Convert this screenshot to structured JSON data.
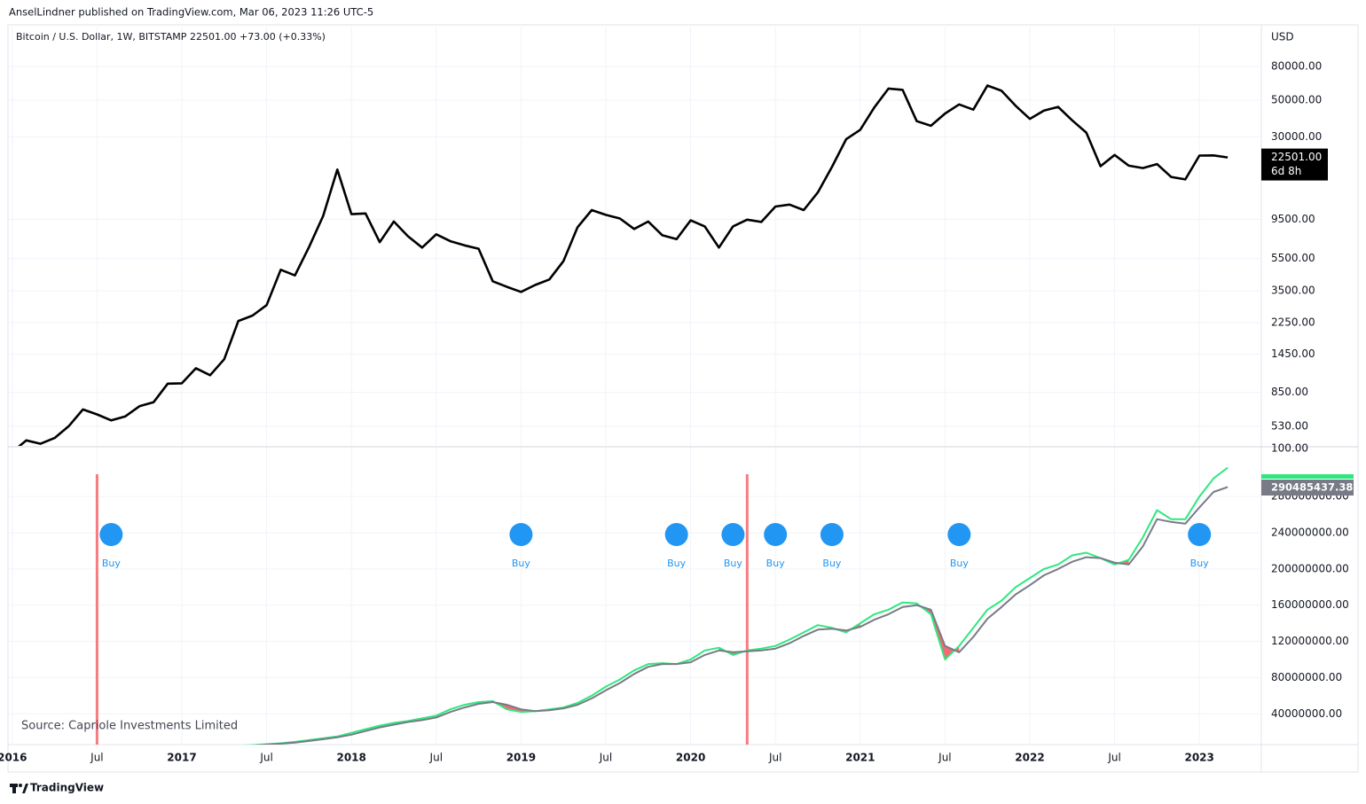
{
  "header": {
    "publisher": "AnselLindner published on TradingView.com, Mar 06, 2023 11:26 UTC-5",
    "symbol": "Bitcoin / U.S. Dollar, 1W, BITSTAMP",
    "last": "22501.00",
    "change": "+73.00 (+0.33%)",
    "currency": "USD"
  },
  "chart_data": [
    {
      "type": "line",
      "log_scale": true,
      "grid": true,
      "x": [
        "2016-01",
        "2016-02",
        "2016-03",
        "2016-04",
        "2016-05",
        "2016-06",
        "2016-07",
        "2016-08",
        "2016-09",
        "2016-10",
        "2016-11",
        "2016-12",
        "2017-01",
        "2017-02",
        "2017-03",
        "2017-04",
        "2017-05",
        "2017-06",
        "2017-07",
        "2017-08",
        "2017-09",
        "2017-10",
        "2017-11",
        "2017-12",
        "2018-01",
        "2018-02",
        "2018-03",
        "2018-04",
        "2018-05",
        "2018-06",
        "2018-07",
        "2018-08",
        "2018-09",
        "2018-10",
        "2018-11",
        "2018-12",
        "2019-01",
        "2019-02",
        "2019-03",
        "2019-04",
        "2019-05",
        "2019-06",
        "2019-07",
        "2019-08",
        "2019-09",
        "2019-10",
        "2019-11",
        "2019-12",
        "2020-01",
        "2020-02",
        "2020-03",
        "2020-04",
        "2020-05",
        "2020-06",
        "2020-07",
        "2020-08",
        "2020-09",
        "2020-10",
        "2020-11",
        "2020-12",
        "2021-01",
        "2021-02",
        "2021-03",
        "2021-04",
        "2021-05",
        "2021-06",
        "2021-07",
        "2021-08",
        "2021-09",
        "2021-10",
        "2021-11",
        "2021-12",
        "2022-01",
        "2022-02",
        "2022-03",
        "2022-04",
        "2022-05",
        "2022-06",
        "2022-07",
        "2022-08",
        "2022-09",
        "2022-10",
        "2022-11",
        "2022-12",
        "2023-01",
        "2023-02",
        "2023-03"
      ],
      "series": [
        {
          "name": "Bitcoin / U.S. Dollar",
          "color": "#000000",
          "values": [
            370,
            435,
            415,
            450,
            530,
            670,
            625,
            575,
            608,
            700,
            740,
            960,
            965,
            1190,
            1080,
            1350,
            2300,
            2480,
            2870,
            4700,
            4340,
            6450,
            9950,
            19000,
            10200,
            10300,
            6900,
            9200,
            7500,
            6400,
            7700,
            7000,
            6600,
            6300,
            4000,
            3700,
            3450,
            3800,
            4100,
            5300,
            8500,
            10800,
            10100,
            9600,
            8300,
            9200,
            7600,
            7200,
            9350,
            8600,
            6400,
            8600,
            9450,
            9150,
            11350,
            11650,
            10800,
            13800,
            19700,
            29000,
            33100,
            45200,
            58800,
            57700,
            37300,
            35000,
            41500,
            47100,
            43800,
            61300,
            57000,
            46200,
            38500,
            43200,
            45500,
            37700,
            31800,
            19900,
            23300,
            20050,
            19400,
            20500,
            17150,
            16550,
            23100,
            23150,
            22501
          ]
        }
      ],
      "ylim": [
        403,
        139500
      ],
      "yticks": [
        {
          "value": 530,
          "label": "530.00"
        },
        {
          "value": 850,
          "label": "850.00"
        },
        {
          "value": 1450,
          "label": "1450.00"
        },
        {
          "value": 2250,
          "label": "2250.00"
        },
        {
          "value": 3500,
          "label": "3500.00"
        },
        {
          "value": 5500,
          "label": "5500.00"
        },
        {
          "value": 9500,
          "label": "9500.00"
        },
        {
          "value": 30000,
          "label": "30000.00"
        },
        {
          "value": 50000,
          "label": "50000.00"
        },
        {
          "value": 80000,
          "label": "80000.00"
        }
      ],
      "price_label": "22501.00",
      "countdown": "6d 8h"
    },
    {
      "type": "line",
      "grid": true,
      "series": [
        {
          "name": "Hash Rate fast",
          "color": "#2ee87e",
          "values": [
            1000000,
            1100000,
            1200000,
            1300000,
            1400000,
            1500000,
            1500000,
            1600000,
            1800000,
            2000000,
            2200000,
            2400000,
            2800000,
            3200000,
            3600000,
            4000000,
            4800000,
            5500000,
            6500000,
            7500000,
            9000000,
            11000000,
            13000000,
            15000000,
            19000000,
            23000000,
            27000000,
            30000000,
            32000000,
            35000000,
            38000000,
            45000000,
            50000000,
            53000000,
            54000000,
            45000000,
            42000000,
            43000000,
            45000000,
            47000000,
            52000000,
            60000000,
            70000000,
            78000000,
            88000000,
            95000000,
            96000000,
            95000000,
            100000000,
            110000000,
            113000000,
            105000000,
            110000000,
            112000000,
            115000000,
            122000000,
            130000000,
            138000000,
            135000000,
            130000000,
            140000000,
            150000000,
            155000000,
            163000000,
            162000000,
            150000000,
            100000000,
            115000000,
            135000000,
            155000000,
            165000000,
            180000000,
            190000000,
            200000000,
            205000000,
            215000000,
            218000000,
            212000000,
            205000000,
            210000000,
            235000000,
            265000000,
            255000000,
            255000000,
            280000000,
            300000000,
            312000000
          ]
        },
        {
          "name": "Hash Rate slow",
          "color": "#787b86",
          "values": [
            900000,
            1000000,
            1100000,
            1200000,
            1300000,
            1400000,
            1500000,
            1500000,
            1700000,
            1900000,
            2100000,
            2300000,
            2600000,
            3000000,
            3400000,
            3800000,
            4400000,
            5000000,
            6000000,
            7000000,
            8300000,
            10000000,
            12000000,
            14000000,
            17000000,
            21000000,
            25000000,
            28000000,
            31000000,
            33000000,
            36000000,
            42000000,
            47000000,
            51000000,
            53000000,
            50000000,
            45000000,
            43000000,
            44000000,
            46000000,
            50000000,
            57000000,
            66000000,
            74000000,
            84000000,
            92000000,
            95000000,
            95000000,
            97000000,
            105000000,
            110000000,
            108000000,
            109000000,
            110000000,
            112000000,
            118000000,
            126000000,
            133000000,
            134000000,
            132000000,
            136000000,
            144000000,
            150000000,
            158000000,
            160000000,
            155000000,
            115000000,
            108000000,
            125000000,
            145000000,
            158000000,
            172000000,
            182000000,
            193000000,
            200000000,
            208000000,
            213000000,
            212000000,
            207000000,
            205000000,
            225000000,
            255000000,
            252000000,
            250000000,
            268000000,
            285000000,
            290485437.38
          ]
        }
      ],
      "last_value_label": "290485437.38",
      "ylim": [
        6000000,
        334000000
      ],
      "yticks": [
        {
          "value": 40000000,
          "label": "40000000.00"
        },
        {
          "value": 80000000,
          "label": "80000000.00"
        },
        {
          "value": 120000000,
          "label": "120000000.00"
        },
        {
          "value": 160000000,
          "label": "160000000.00"
        },
        {
          "value": 200000000,
          "label": "200000000.00"
        },
        {
          "value": 240000000,
          "label": "240000000.00"
        },
        {
          "value": 280000000,
          "label": "280000000.00"
        }
      ],
      "scale_label": "100.00",
      "buy_signals": {
        "label": "Buy",
        "x": [
          "2016-08",
          "2019-01",
          "2019-12",
          "2020-04",
          "2020-07",
          "2020-11",
          "2021-08",
          "2023-01"
        ]
      },
      "red_lines": [
        "2016-07",
        "2020-05"
      ],
      "source": "Source: Capriole Investments Limited",
      "xticks": [
        {
          "value": "2016-01",
          "label": "2016"
        },
        {
          "value": "2016-07",
          "label": "Jul"
        },
        {
          "value": "2017-01",
          "label": "2017"
        },
        {
          "value": "2017-07",
          "label": "Jul"
        },
        {
          "value": "2018-01",
          "label": "2018"
        },
        {
          "value": "2018-07",
          "label": "Jul"
        },
        {
          "value": "2019-01",
          "label": "2019"
        },
        {
          "value": "2019-07",
          "label": "Jul"
        },
        {
          "value": "2020-01",
          "label": "2020"
        },
        {
          "value": "2020-07",
          "label": "Jul"
        },
        {
          "value": "2021-01",
          "label": "2021"
        },
        {
          "value": "2021-07",
          "label": "Jul"
        },
        {
          "value": "2022-01",
          "label": "2022"
        },
        {
          "value": "2022-07",
          "label": "Jul"
        },
        {
          "value": "2023-01",
          "label": "2023"
        }
      ]
    }
  ],
  "footer": {
    "brand": "TradingView"
  }
}
